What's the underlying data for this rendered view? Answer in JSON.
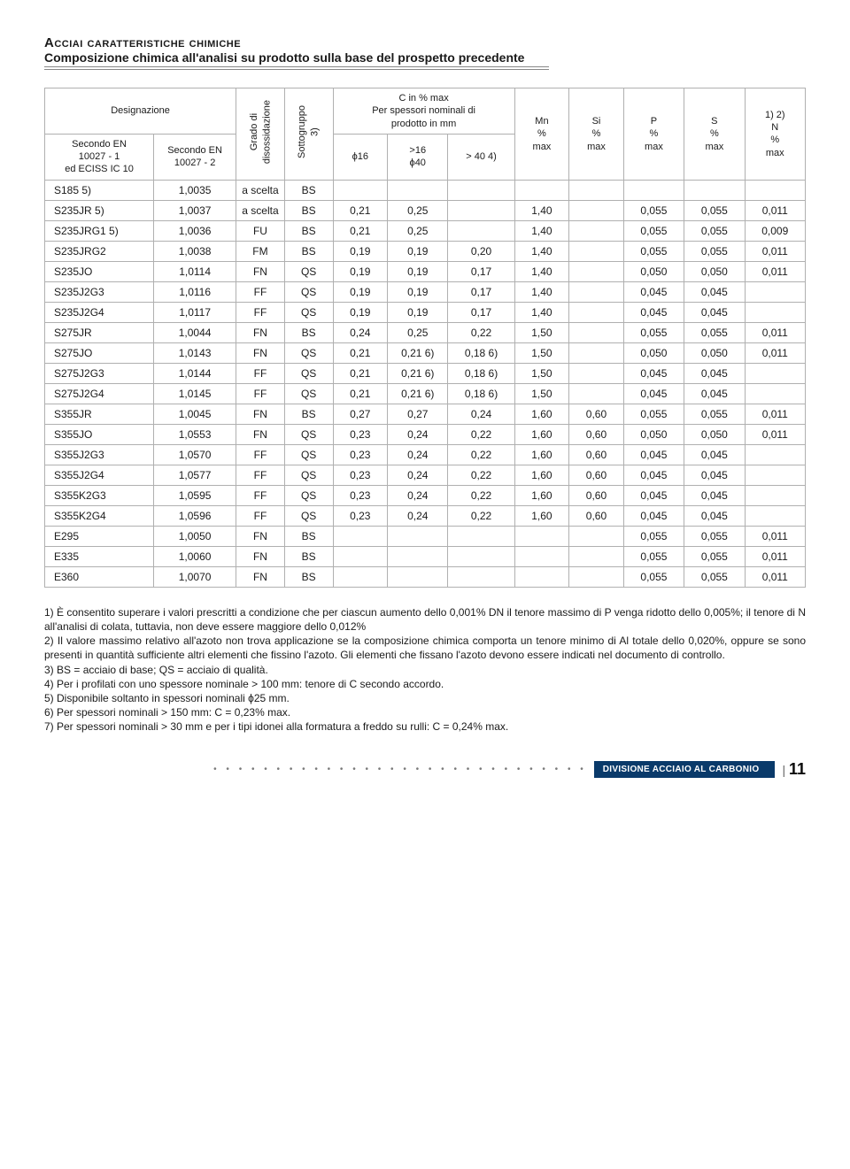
{
  "title": {
    "line1": "Acciai caratteristiche chimiche",
    "line2": "Composizione chimica all'analisi su prodotto sulla base del prospetto precedente"
  },
  "header": {
    "designazione": "Designazione",
    "secondo1": "Secondo EN\n10027 - 1\ned ECISS IC 10",
    "secondo2": "Secondo EN\n10027 - 2",
    "grado": "Grado di\ndisossidazione",
    "sotto": "Sottogruppo\n3)",
    "cmax_top": "C in % max",
    "cmax_sub": "Per spessori nominali di\nprodotto in mm",
    "c1": "ϕ16",
    "c2": ">16\nϕ40",
    "c3": "> 40 4)",
    "mn": "Mn\n%\nmax",
    "si": "Si\n%\nmax",
    "p": "P\n%\nmax",
    "s": "S\n%\nmax",
    "n": "1) 2)\nN\n%\nmax"
  },
  "rows": [
    {
      "a": "S185 5)",
      "b": "1,0035",
      "c": "a scelta",
      "d": "BS",
      "e": "",
      "f": "",
      "g": "",
      "h": "",
      "i": "",
      "j": "",
      "k": "",
      "l": ""
    },
    {
      "a": "S235JR 5)",
      "b": "1,0037",
      "c": "a scelta",
      "d": "BS",
      "e": "0,21",
      "f": "0,25",
      "g": "",
      "h": "1,40",
      "i": "",
      "j": "0,055",
      "k": "0,055",
      "l": "0,011"
    },
    {
      "a": "S235JRG1 5)",
      "b": "1,0036",
      "c": "FU",
      "d": "BS",
      "e": "0,21",
      "f": "0,25",
      "g": "",
      "h": "1,40",
      "i": "",
      "j": "0,055",
      "k": "0,055",
      "l": "0,009"
    },
    {
      "a": "S235JRG2",
      "b": "1,0038",
      "c": "FM",
      "d": "BS",
      "e": "0,19",
      "f": "0,19",
      "g": "0,20",
      "h": "1,40",
      "i": "",
      "j": "0,055",
      "k": "0,055",
      "l": "0,011"
    },
    {
      "a": "S235JO",
      "b": "1,0114",
      "c": "FN",
      "d": "QS",
      "e": "0,19",
      "f": "0,19",
      "g": "0,17",
      "h": "1,40",
      "i": "",
      "j": "0,050",
      "k": "0,050",
      "l": "0,011"
    },
    {
      "a": "S235J2G3",
      "b": "1,0116",
      "c": "FF",
      "d": "QS",
      "e": "0,19",
      "f": "0,19",
      "g": "0,17",
      "h": "1,40",
      "i": "",
      "j": "0,045",
      "k": "0,045",
      "l": ""
    },
    {
      "a": "S235J2G4",
      "b": "1,0117",
      "c": "FF",
      "d": "QS",
      "e": "0,19",
      "f": "0,19",
      "g": "0,17",
      "h": "1,40",
      "i": "",
      "j": "0,045",
      "k": "0,045",
      "l": ""
    },
    {
      "a": "S275JR",
      "b": "1,0044",
      "c": "FN",
      "d": "BS",
      "e": "0,24",
      "f": "0,25",
      "g": "0,22",
      "h": "1,50",
      "i": "",
      "j": "0,055",
      "k": "0,055",
      "l": "0,011"
    },
    {
      "a": "S275JO",
      "b": "1,0143",
      "c": "FN",
      "d": "QS",
      "e": "0,21",
      "f": "0,21 6)",
      "g": "0,18 6)",
      "h": "1,50",
      "i": "",
      "j": "0,050",
      "k": "0,050",
      "l": "0,011"
    },
    {
      "a": "S275J2G3",
      "b": "1,0144",
      "c": "FF",
      "d": "QS",
      "e": "0,21",
      "f": "0,21 6)",
      "g": "0,18 6)",
      "h": "1,50",
      "i": "",
      "j": "0,045",
      "k": "0,045",
      "l": ""
    },
    {
      "a": "S275J2G4",
      "b": "1,0145",
      "c": "FF",
      "d": "QS",
      "e": "0,21",
      "f": "0,21 6)",
      "g": "0,18 6)",
      "h": "1,50",
      "i": "",
      "j": "0,045",
      "k": "0,045",
      "l": ""
    },
    {
      "a": "S355JR",
      "b": "1,0045",
      "c": "FN",
      "d": "BS",
      "e": "0,27",
      "f": "0,27",
      "g": "0,24",
      "h": "1,60",
      "i": "0,60",
      "j": "0,055",
      "k": "0,055",
      "l": "0,011"
    },
    {
      "a": "S355JO",
      "b": "1,0553",
      "c": "FN",
      "d": "QS",
      "e": "0,23",
      "f": "0,24",
      "g": "0,22",
      "h": "1,60",
      "i": "0,60",
      "j": "0,050",
      "k": "0,050",
      "l": "0,011"
    },
    {
      "a": "S355J2G3",
      "b": "1,0570",
      "c": "FF",
      "d": "QS",
      "e": "0,23",
      "f": "0,24",
      "g": "0,22",
      "h": "1,60",
      "i": "0,60",
      "j": "0,045",
      "k": "0,045",
      "l": ""
    },
    {
      "a": "S355J2G4",
      "b": "1,0577",
      "c": "FF",
      "d": "QS",
      "e": "0,23",
      "f": "0,24",
      "g": "0,22",
      "h": "1,60",
      "i": "0,60",
      "j": "0,045",
      "k": "0,045",
      "l": ""
    },
    {
      "a": "S355K2G3",
      "b": "1,0595",
      "c": "FF",
      "d": "QS",
      "e": "0,23",
      "f": "0,24",
      "g": "0,22",
      "h": "1,60",
      "i": "0,60",
      "j": "0,045",
      "k": "0,045",
      "l": ""
    },
    {
      "a": "S355K2G4",
      "b": "1,0596",
      "c": "FF",
      "d": "QS",
      "e": "0,23",
      "f": "0,24",
      "g": "0,22",
      "h": "1,60",
      "i": "0,60",
      "j": "0,045",
      "k": "0,045",
      "l": ""
    },
    {
      "a": "E295",
      "b": "1,0050",
      "c": "FN",
      "d": "BS",
      "e": "",
      "f": "",
      "g": "",
      "h": "",
      "i": "",
      "j": "0,055",
      "k": "0,055",
      "l": "0,011"
    },
    {
      "a": "E335",
      "b": "1,0060",
      "c": "FN",
      "d": "BS",
      "e": "",
      "f": "",
      "g": "",
      "h": "",
      "i": "",
      "j": "0,055",
      "k": "0,055",
      "l": "0,011"
    },
    {
      "a": "E360",
      "b": "1,0070",
      "c": "FN",
      "d": "BS",
      "e": "",
      "f": "",
      "g": "",
      "h": "",
      "i": "",
      "j": "0,055",
      "k": "0,055",
      "l": "0,011"
    }
  ],
  "notes": "1) È consentito superare i valori prescritti a condizione che per ciascun aumento dello 0,001% DN il tenore massimo di P venga ridotto dello 0,005%; il tenore di N all'analisi di colata, tuttavia, non deve essere maggiore dello 0,012%\n2) Il valore massimo relativo all'azoto non trova applicazione se la composizione chimica comporta un tenore minimo di Al totale dello 0,020%, oppure se sono presenti in quantità sufficiente altri elementi che fissino l'azoto. Gli elementi che fissano l'azoto devono essere indicati nel documento di controllo.\n3) BS = acciaio di base; QS = acciaio di qualità.\n4) Per i profilati con uno spessore nominale > 100 mm: tenore di C secondo accordo.\n5) Disponibile soltanto in spessori nominali ϕ25 mm.\n6) Per spessori nominali > 150 mm: C = 0,23% max.\n7) Per spessori nominali > 30 mm e per i tipi idonei alla formatura a freddo su rulli: C = 0,24% max.",
  "footer": {
    "badge": "DIVISIONE ACCIAIO AL CARBONIO",
    "page": "11"
  },
  "style": {
    "brand_color": "#0a3a6a",
    "border_color": "#b0b0b0",
    "text_color": "#1a1a1a"
  }
}
